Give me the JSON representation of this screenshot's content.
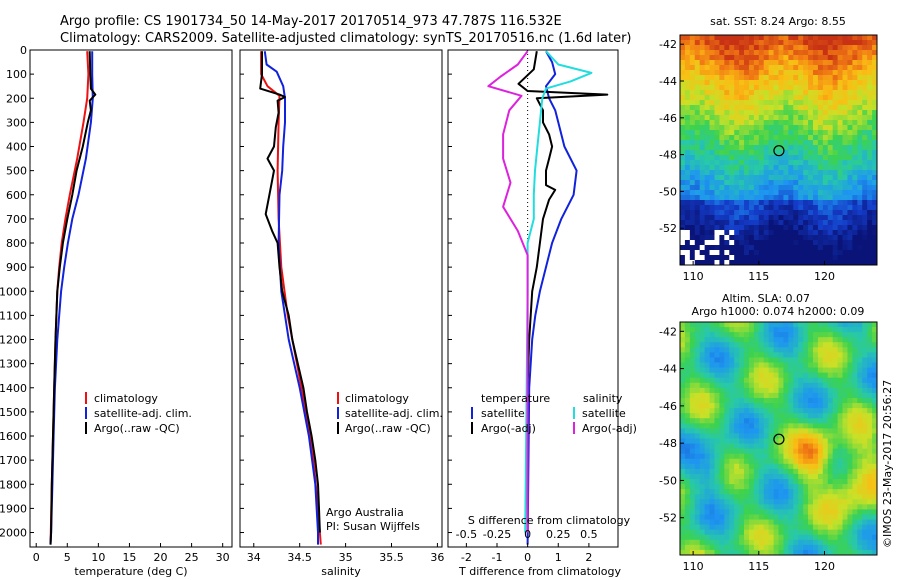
{
  "header": {
    "line1": "Argo profile: CS 1901734_50 14-May-2017 20170514_973 47.787S 116.532E",
    "line2": "Climatology: CARS2009. Satellite-adjusted climatology: synTS_20170516.nc (1.6d later)"
  },
  "colors": {
    "climatology": "#ee1111",
    "satellite": "#1122dd",
    "argo": "#000000",
    "satellite_salinity": "#22dddd",
    "argo_salinity": "#dd22dd"
  },
  "chart_data": [
    {
      "type": "line",
      "panel": "temperature",
      "xlabel": "temperature (deg C)",
      "xlim": [
        -1,
        31.5
      ],
      "xticks": [
        0,
        5,
        10,
        15,
        20,
        25,
        30
      ],
      "ylim": [
        2060,
        0
      ],
      "yticks": [
        0,
        100,
        200,
        300,
        400,
        500,
        600,
        700,
        800,
        900,
        1000,
        1100,
        1200,
        1300,
        1400,
        1500,
        1600,
        1700,
        1800,
        1900,
        2000
      ],
      "legend": [
        "climatology",
        "satellite-adj. clim.",
        "Argo(..raw -QC)"
      ],
      "series": [
        {
          "name": "climatology",
          "color_key": "climatology",
          "points": [
            [
              8.2,
              5
            ],
            [
              8.4,
              100
            ],
            [
              8.2,
              200
            ],
            [
              7.6,
              300
            ],
            [
              6.6,
              450
            ],
            [
              5.4,
              600
            ],
            [
              4.7,
              700
            ],
            [
              4.1,
              800
            ],
            [
              3.7,
              900
            ],
            [
              3.4,
              1000
            ],
            [
              3.1,
              1200
            ],
            [
              2.9,
              1400
            ],
            [
              2.7,
              1600
            ],
            [
              2.5,
              1800
            ],
            [
              2.35,
              2000
            ],
            [
              2.3,
              2050
            ]
          ]
        },
        {
          "name": "satellite-adj. clim.",
          "color_key": "satellite",
          "points": [
            [
              9.0,
              5
            ],
            [
              9.0,
              100
            ],
            [
              9.1,
              200
            ],
            [
              8.8,
              300
            ],
            [
              8.0,
              450
            ],
            [
              6.8,
              600
            ],
            [
              5.8,
              700
            ],
            [
              5.1,
              800
            ],
            [
              4.5,
              900
            ],
            [
              4.0,
              1000
            ],
            [
              3.4,
              1200
            ],
            [
              3.0,
              1400
            ],
            [
              2.8,
              1600
            ],
            [
              2.6,
              1800
            ],
            [
              2.4,
              2000
            ],
            [
              2.3,
              2050
            ]
          ]
        },
        {
          "name": "Argo(..raw -QC)",
          "color_key": "argo",
          "points": [
            [
              8.6,
              5
            ],
            [
              8.7,
              100
            ],
            [
              8.8,
              160
            ],
            [
              9.5,
              185
            ],
            [
              8.6,
              210
            ],
            [
              8.8,
              250
            ],
            [
              8.3,
              300
            ],
            [
              7.5,
              400
            ],
            [
              6.5,
              500
            ],
            [
              5.8,
              600
            ],
            [
              5.0,
              700
            ],
            [
              4.3,
              800
            ],
            [
              3.8,
              900
            ],
            [
              3.4,
              1000
            ],
            [
              3.1,
              1200
            ],
            [
              2.9,
              1400
            ],
            [
              2.7,
              1600
            ],
            [
              2.5,
              1800
            ],
            [
              2.4,
              2000
            ],
            [
              2.3,
              2050
            ]
          ]
        }
      ]
    },
    {
      "type": "line",
      "panel": "salinity",
      "xlabel": "salinity",
      "xlim": [
        33.85,
        36.05
      ],
      "xticks": [
        34,
        34.5,
        35,
        35.5,
        36
      ],
      "ylim": [
        2060,
        0
      ],
      "legend": [
        "climatology",
        "satellite-adj. clim.",
        "Argo(..raw -QC)"
      ],
      "annotations": [
        "Argo Australia",
        "PI: Susan Wijffels"
      ],
      "series": [
        {
          "name": "climatology",
          "color_key": "climatology",
          "points": [
            [
              34.08,
              5
            ],
            [
              34.08,
              100
            ],
            [
              34.15,
              150
            ],
            [
              34.28,
              190
            ],
            [
              34.27,
              300
            ],
            [
              34.26,
              500
            ],
            [
              34.27,
              700
            ],
            [
              34.3,
              900
            ],
            [
              34.37,
              1100
            ],
            [
              34.47,
              1300
            ],
            [
              34.57,
              1500
            ],
            [
              34.65,
              1700
            ],
            [
              34.7,
              1900
            ],
            [
              34.73,
              2050
            ]
          ]
        },
        {
          "name": "satellite-adj. clim.",
          "color_key": "satellite",
          "points": [
            [
              34.12,
              5
            ],
            [
              34.14,
              60
            ],
            [
              34.25,
              90
            ],
            [
              34.32,
              150
            ],
            [
              34.34,
              200
            ],
            [
              34.34,
              300
            ],
            [
              34.32,
              400
            ],
            [
              34.31,
              500
            ],
            [
              34.28,
              600
            ],
            [
              34.27,
              800
            ],
            [
              34.3,
              1000
            ],
            [
              34.38,
              1200
            ],
            [
              34.5,
              1400
            ],
            [
              34.6,
              1600
            ],
            [
              34.67,
              1800
            ],
            [
              34.7,
              2000
            ],
            [
              34.7,
              2050
            ]
          ]
        },
        {
          "name": "Argo(..raw -QC)",
          "color_key": "argo",
          "points": [
            [
              34.09,
              5
            ],
            [
              34.09,
              100
            ],
            [
              34.07,
              160
            ],
            [
              34.28,
              185
            ],
            [
              34.34,
              195
            ],
            [
              34.26,
              210
            ],
            [
              34.27,
              260
            ],
            [
              34.24,
              320
            ],
            [
              34.22,
              400
            ],
            [
              34.15,
              450
            ],
            [
              34.22,
              500
            ],
            [
              34.17,
              600
            ],
            [
              34.13,
              680
            ],
            [
              34.2,
              750
            ],
            [
              34.26,
              800
            ],
            [
              34.28,
              900
            ],
            [
              34.31,
              1000
            ],
            [
              34.38,
              1100
            ],
            [
              34.42,
              1200
            ],
            [
              34.48,
              1300
            ],
            [
              34.54,
              1400
            ],
            [
              34.58,
              1500
            ],
            [
              34.63,
              1600
            ],
            [
              34.67,
              1700
            ],
            [
              34.7,
              1800
            ],
            [
              34.71,
              1900
            ],
            [
              34.72,
              2000
            ]
          ]
        }
      ]
    },
    {
      "type": "line",
      "panel": "differences",
      "xlabel": "T difference from climatology",
      "xlim": [
        -2.6,
        2.95
      ],
      "xticks": [
        -2,
        -1,
        0,
        1,
        2
      ],
      "top_label": "S difference from climatology",
      "top_ticks": [
        "-0.5",
        "-0.25",
        "0",
        "0.25",
        "0.5"
      ],
      "ylim": [
        2060,
        0
      ],
      "legend_left_title": "temperature",
      "legend_right_title": "salinity",
      "legend": [
        "satellite",
        "Argo(-adj)",
        "satellite",
        "Argo(-adj)"
      ],
      "series": [
        {
          "name": "satellite",
          "color_key": "satellite",
          "points": [
            [
              0.6,
              5
            ],
            [
              0.8,
              50
            ],
            [
              0.9,
              100
            ],
            [
              0.6,
              150
            ],
            [
              0.7,
              200
            ],
            [
              0.9,
              250
            ],
            [
              1.0,
              300
            ],
            [
              1.2,
              400
            ],
            [
              1.6,
              500
            ],
            [
              1.5,
              600
            ],
            [
              1.1,
              700
            ],
            [
              0.8,
              800
            ],
            [
              0.6,
              900
            ],
            [
              0.4,
              1000
            ],
            [
              0.25,
              1100
            ],
            [
              0.15,
              1200
            ],
            [
              0.05,
              1400
            ],
            [
              0.0,
              2050
            ]
          ]
        },
        {
          "name": "Argo(-adj)",
          "color_key": "argo",
          "points": [
            [
              0.3,
              5
            ],
            [
              0.2,
              80
            ],
            [
              -0.3,
              140
            ],
            [
              0.0,
              170
            ],
            [
              2.6,
              185
            ],
            [
              0.3,
              200
            ],
            [
              0.5,
              250
            ],
            [
              0.5,
              300
            ],
            [
              0.7,
              350
            ],
            [
              0.8,
              400
            ],
            [
              0.7,
              450
            ],
            [
              0.6,
              500
            ],
            [
              0.6,
              560
            ],
            [
              0.9,
              580
            ],
            [
              0.7,
              620
            ],
            [
              0.5,
              700
            ],
            [
              0.4,
              800
            ],
            [
              0.3,
              900
            ],
            [
              0.15,
              1000
            ],
            [
              0.05,
              1200
            ],
            [
              0.0,
              1400
            ],
            [
              0.0,
              2000
            ]
          ]
        },
        {
          "name": "satellite",
          "color_key": "satellite_salinity",
          "points": [
            [
              0.15,
              5
            ],
            [
              0.25,
              60
            ],
            [
              0.52,
              95
            ],
            [
              0.35,
              130
            ],
            [
              0.15,
              160
            ],
            [
              0.12,
              200
            ],
            [
              0.1,
              300
            ],
            [
              0.08,
              400
            ],
            [
              0.06,
              500
            ],
            [
              0.05,
              600
            ],
            [
              0.05,
              700
            ],
            [
              0.0,
              800
            ],
            [
              0.0,
              1000
            ],
            [
              -0.01,
              1500
            ],
            [
              -0.02,
              2000
            ]
          ]
        },
        {
          "name": "Argo(-adj)",
          "color_key": "argo_salinity",
          "points": [
            [
              0.0,
              5
            ],
            [
              -0.08,
              60
            ],
            [
              -0.22,
              110
            ],
            [
              -0.32,
              150
            ],
            [
              -0.05,
              190
            ],
            [
              -0.15,
              250
            ],
            [
              -0.2,
              350
            ],
            [
              -0.2,
              450
            ],
            [
              -0.14,
              550
            ],
            [
              -0.2,
              650
            ],
            [
              -0.08,
              750
            ],
            [
              0.0,
              850
            ],
            [
              0.0,
              1000
            ],
            [
              0.0,
              2000
            ]
          ]
        }
      ]
    },
    {
      "type": "heatmap",
      "panel": "sst-map",
      "title": "sat. SST: 8.24 Argo: 8.55",
      "xlim": [
        109,
        124
      ],
      "ylim": [
        -54,
        -41.5
      ],
      "xticks": [
        110,
        115,
        120
      ],
      "yticks": [
        -42,
        -44,
        -46,
        -48,
        -50,
        -52
      ],
      "marker": [
        116.532,
        -47.787
      ]
    },
    {
      "type": "heatmap",
      "panel": "sla-map",
      "title_line1": "Altim. SLA: 0.07",
      "title_line2": "Argo h1000: 0.074 h2000: 0.09",
      "xlim": [
        109,
        124
      ],
      "ylim": [
        -54,
        -41.5
      ],
      "xticks": [
        110,
        115,
        120
      ],
      "yticks": [
        -42,
        -44,
        -46,
        -48,
        -50,
        -52
      ],
      "marker": [
        116.532,
        -47.787
      ]
    }
  ],
  "credit": "©IMOS 23-May-2017 20:56:27"
}
